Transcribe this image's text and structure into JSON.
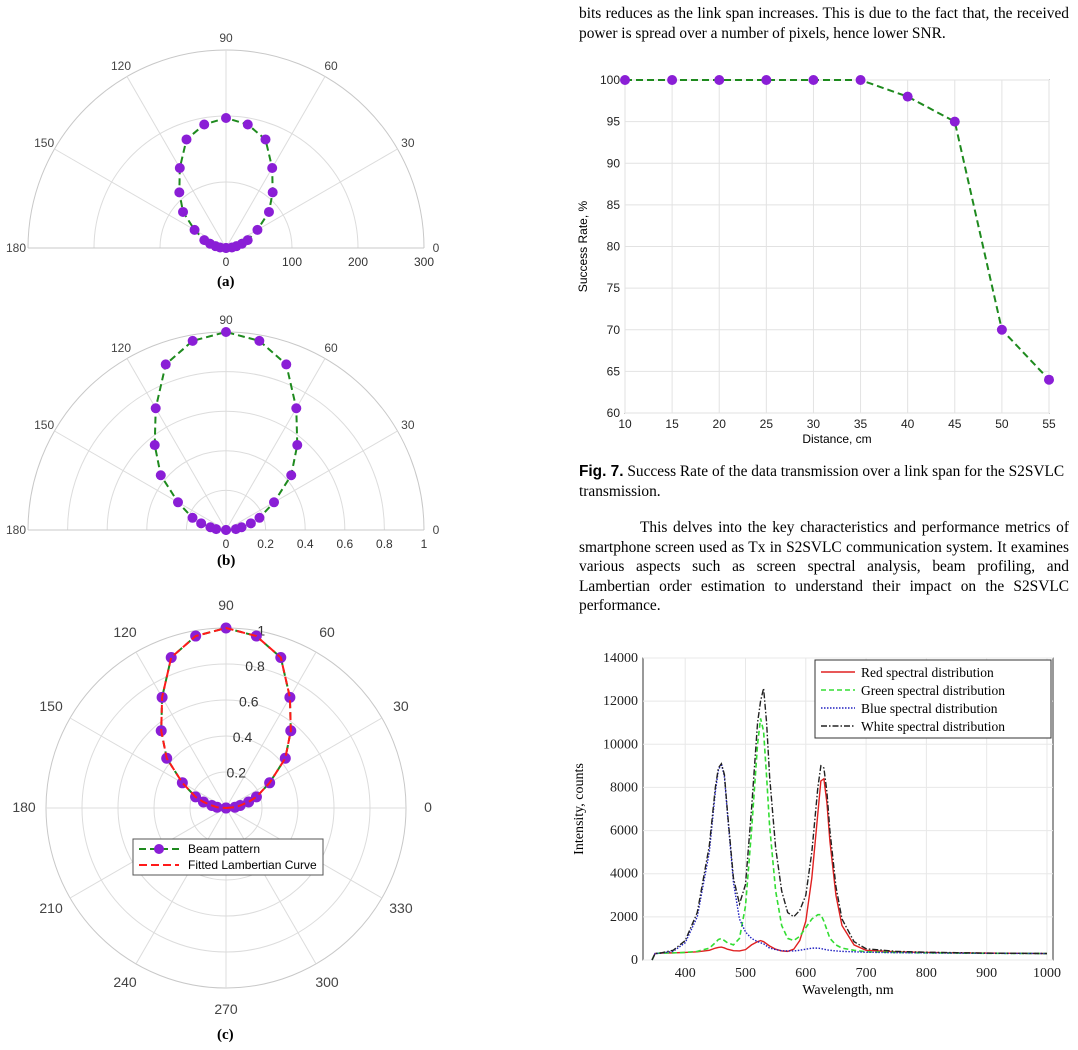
{
  "paragraphs": {
    "top": "bits reduces as the link span increases. This is due to the fact that, the received power is spread over a number of pixels, hence lower SNR.",
    "middle": "This delves into the key characteristics and performance metrics of smartphone screen used as Tx in S2SVLC communication system. It examines various aspects such as screen spectral analysis, beam profiling, and Lambertian order estimation to understand their impact on the S2SVLC performance."
  },
  "captions": {
    "a": "(a)",
    "b": "(b)",
    "c": "(c)",
    "fig7_label": "Fig. 7.",
    "fig7_text": "Success Rate of the data transmission over a link span for the S2SVLC transmission."
  },
  "colors": {
    "marker": "#8a1ed6",
    "beam_line": "#1e8a1e",
    "fit_line": "#ff1a1a",
    "grid": "#dcdcdc",
    "red": "#e02020",
    "green": "#33dd33",
    "blue": "#2020c0",
    "white_line": "#222222"
  },
  "chart_data": [
    {
      "type": "polar",
      "label": "(a)",
      "span": "half",
      "r_range": [
        0,
        300
      ],
      "r_ticks": [
        "0",
        "100",
        "200",
        "300"
      ],
      "angle_ticks": [
        "180",
        "150",
        "120",
        "90",
        "60",
        "30",
        "0"
      ],
      "theta_deg": [
        0,
        5,
        10,
        15,
        20,
        30,
        40,
        50,
        60,
        70,
        80,
        90,
        100,
        110,
        120,
        130,
        140,
        150,
        160,
        165,
        170,
        175,
        180
      ],
      "series": [
        {
          "r": [
            0,
            9,
            16,
            25,
            35,
            55,
            85,
            110,
            140,
            175,
            190,
            197,
            190,
            175,
            140,
            110,
            85,
            55,
            35,
            25,
            16,
            9,
            0
          ]
        }
      ]
    },
    {
      "type": "polar",
      "label": "(b)",
      "span": "half",
      "r_range": [
        0,
        1
      ],
      "r_ticks": [
        "0",
        "0.2",
        "0.4",
        "0.6",
        "0.8",
        "1"
      ],
      "angle_ticks": [
        "180",
        "150",
        "120",
        "90",
        "60",
        "30",
        "0"
      ],
      "theta_deg": [
        0,
        5,
        10,
        15,
        20,
        30,
        40,
        50,
        60,
        70,
        80,
        90,
        100,
        110,
        120,
        130,
        140,
        150,
        160,
        165,
        170,
        175,
        180
      ],
      "series": [
        {
          "r": [
            0,
            0.05,
            0.08,
            0.13,
            0.18,
            0.28,
            0.43,
            0.56,
            0.71,
            0.89,
            0.97,
            1.0,
            0.97,
            0.89,
            0.71,
            0.56,
            0.43,
            0.28,
            0.18,
            0.13,
            0.08,
            0.05,
            0
          ]
        }
      ]
    },
    {
      "type": "polar",
      "label": "(c)",
      "span": "full",
      "r_range": [
        0,
        1
      ],
      "r_ticks": [
        "0.2",
        "0.4",
        "0.6",
        "0.8",
        "1"
      ],
      "angle_ticks": [
        "0",
        "30",
        "60",
        "90",
        "120",
        "150",
        "180",
        "210",
        "240",
        "270",
        "300",
        "330"
      ],
      "theta_deg": [
        0,
        5,
        10,
        15,
        20,
        30,
        40,
        50,
        60,
        70,
        80,
        90,
        100,
        110,
        120,
        130,
        140,
        150,
        160,
        165,
        170,
        175,
        180
      ],
      "legend": [
        "Beam pattern",
        "Fitted Lambertian Curve"
      ],
      "series": [
        {
          "name": "Beam pattern",
          "r": [
            0,
            0.05,
            0.08,
            0.13,
            0.18,
            0.28,
            0.43,
            0.56,
            0.71,
            0.89,
            0.97,
            1.0,
            0.97,
            0.89,
            0.71,
            0.56,
            0.43,
            0.28,
            0.18,
            0.13,
            0.08,
            0.05,
            0
          ]
        },
        {
          "name": "Fitted Lambertian Curve",
          "r": [
            0,
            0.05,
            0.08,
            0.13,
            0.18,
            0.28,
            0.43,
            0.56,
            0.71,
            0.89,
            0.97,
            1.0,
            0.97,
            0.89,
            0.71,
            0.56,
            0.43,
            0.28,
            0.18,
            0.13,
            0.08,
            0.05,
            0
          ]
        }
      ]
    },
    {
      "type": "line",
      "title": "",
      "xlabel": "Distance, cm",
      "ylabel": "Success Rate, %",
      "xlim": [
        10,
        55
      ],
      "ylim": [
        60,
        100
      ],
      "x_ticks": [
        "10",
        "15",
        "20",
        "25",
        "30",
        "35",
        "40",
        "45",
        "50",
        "55"
      ],
      "y_ticks": [
        "60",
        "65",
        "70",
        "75",
        "80",
        "85",
        "90",
        "95",
        "100"
      ],
      "grid": true,
      "x": [
        10,
        15,
        20,
        25,
        30,
        35,
        40,
        45,
        50,
        55
      ],
      "series": [
        {
          "values": [
            100,
            100,
            100,
            100,
            100,
            100,
            98,
            95,
            70,
            64
          ]
        }
      ]
    },
    {
      "type": "line",
      "xlabel": "Wavelength, nm",
      "ylabel": "Intensity, counts",
      "xlim": [
        330,
        1010
      ],
      "ylim": [
        0,
        14000
      ],
      "x_ticks": [
        "400",
        "500",
        "600",
        "700",
        "800",
        "900",
        "1000"
      ],
      "y_ticks": [
        "0",
        "2000",
        "4000",
        "6000",
        "8000",
        "10000",
        "12000",
        "14000"
      ],
      "grid": true,
      "legend": [
        "Red spectral distribution",
        "Green spectral distribution",
        "Blue spectral distribution",
        "White spectral distribution"
      ],
      "legend_position": "top-right",
      "x": [
        345,
        350,
        360,
        380,
        400,
        420,
        440,
        450,
        455,
        460,
        465,
        470,
        480,
        490,
        500,
        510,
        520,
        525,
        530,
        535,
        540,
        550,
        560,
        570,
        580,
        590,
        600,
        610,
        620,
        625,
        630,
        635,
        640,
        650,
        660,
        680,
        700,
        750,
        800,
        850,
        900,
        950,
        1000
      ],
      "series": [
        {
          "name": "Red spectral distribution",
          "values": [
            0,
            300,
            320,
            330,
            350,
            380,
            450,
            550,
            580,
            600,
            560,
            500,
            430,
            420,
            480,
            700,
            850,
            900,
            850,
            750,
            650,
            500,
            420,
            400,
            500,
            900,
            1800,
            3800,
            6800,
            8300,
            8400,
            7300,
            5500,
            3000,
            1600,
            700,
            450,
            380,
            350,
            330,
            320,
            310,
            300
          ]
        },
        {
          "name": "Green spectral distribution",
          "values": [
            0,
            300,
            320,
            330,
            350,
            400,
            550,
            800,
            950,
            1000,
            900,
            800,
            700,
            1000,
            2500,
            6000,
            10000,
            11200,
            10600,
            8500,
            6200,
            3200,
            1600,
            1000,
            900,
            1100,
            1500,
            1900,
            2100,
            2100,
            1800,
            1400,
            1000,
            700,
            550,
            450,
            380,
            350,
            330,
            320,
            310,
            305,
            300
          ]
        },
        {
          "name": "Blue spectral distribution",
          "values": [
            0,
            300,
            320,
            400,
            800,
            2000,
            5000,
            7800,
            8800,
            9100,
            8500,
            6800,
            3600,
            1900,
            1300,
            1000,
            850,
            800,
            750,
            650,
            550,
            480,
            430,
            420,
            420,
            450,
            500,
            550,
            550,
            530,
            500,
            470,
            450,
            420,
            400,
            380,
            360,
            340,
            330,
            320,
            310,
            305,
            300
          ]
        },
        {
          "name": "White spectral distribution",
          "values": [
            0,
            300,
            330,
            450,
            900,
            2200,
            5300,
            8000,
            8900,
            9100,
            8600,
            6900,
            3800,
            2600,
            3500,
            7000,
            11000,
            12000,
            12600,
            11000,
            8500,
            5200,
            3200,
            2200,
            2000,
            2300,
            3000,
            5000,
            8000,
            9000,
            8900,
            7800,
            6000,
            3400,
            1900,
            850,
            520,
            400,
            360,
            340,
            320,
            310,
            300
          ]
        }
      ]
    }
  ]
}
